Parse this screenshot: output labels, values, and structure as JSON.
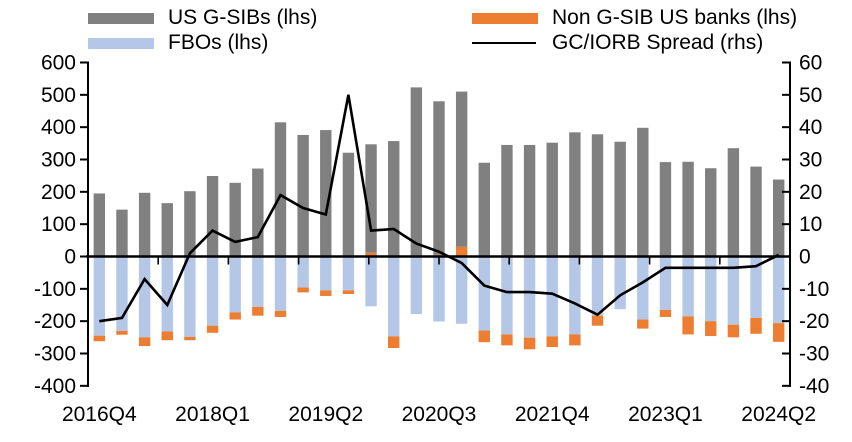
{
  "chart": {
    "legend": {
      "items": [
        {
          "label": "US G-SIBs (lhs)",
          "color": "#808080",
          "marker": "rect"
        },
        {
          "label": "FBOs (lhs)",
          "color": "#b4c7e7",
          "marker": "rect"
        },
        {
          "label": "Non G-SIB US banks (lhs)",
          "color": "#ed7d31",
          "marker": "rect"
        },
        {
          "label": "GC/IORB Spread (rhs)",
          "color": "#000000",
          "marker": "line"
        }
      ]
    },
    "left_axis_tick_labels": [
      "600",
      "500",
      "400",
      "300",
      "200",
      "100",
      "0",
      "-100",
      "-200",
      "-300",
      "-400"
    ],
    "right_axis_tick_labels": [
      "60",
      "50",
      "40",
      "30",
      "20",
      "10",
      "0",
      "-10",
      "-20",
      "-30",
      "-40"
    ],
    "x_tick_labels": [
      "2016Q4",
      "2018Q1",
      "2019Q2",
      "2020Q3",
      "2021Q4",
      "2023Q1",
      "2024Q2"
    ]
  },
  "chart_data": {
    "type": "combo_stacked_bar_line",
    "categories": [
      "2016Q4",
      "2017Q1",
      "2017Q2",
      "2017Q3",
      "2017Q4",
      "2018Q1",
      "2018Q2",
      "2018Q3",
      "2018Q4",
      "2019Q1",
      "2019Q2",
      "2019Q3",
      "2019Q4",
      "2020Q1",
      "2020Q2",
      "2020Q3",
      "2020Q4",
      "2021Q1",
      "2021Q2",
      "2021Q3",
      "2021Q4",
      "2022Q1",
      "2022Q2",
      "2022Q3",
      "2022Q4",
      "2023Q1",
      "2023Q2",
      "2023Q3",
      "2023Q4",
      "2024Q1",
      "2024Q2"
    ],
    "series": [
      {
        "name": "US G-SIBs (lhs)",
        "type": "bar",
        "axis": "lhs",
        "color": "#808080",
        "values": [
          195,
          145,
          197,
          165,
          202,
          249,
          228,
          272,
          415,
          376,
          391,
          321,
          335,
          357,
          523,
          475,
          480,
          290,
          345,
          345,
          352,
          384,
          378,
          355,
          398,
          292,
          293,
          273,
          335,
          278,
          238
        ]
      },
      {
        "name": "FBOs (lhs)",
        "type": "bar",
        "axis": "lhs",
        "color": "#b4c7e7",
        "values": [
          -245,
          -230,
          -250,
          -232,
          -249,
          -214,
          -173,
          -156,
          -168,
          -96,
          -105,
          -105,
          -154,
          -247,
          -178,
          -201,
          -208,
          -229,
          -241,
          -251,
          -247,
          -241,
          -183,
          -163,
          -195,
          -165,
          -185,
          -200,
          -211,
          -190,
          -206
        ]
      },
      {
        "name": "Non G-SIB US banks (lhs)",
        "type": "bar",
        "axis": "lhs",
        "color": "#ed7d31",
        "values": [
          -17,
          -12,
          -27,
          -27,
          -10,
          -22,
          -22,
          -27,
          -19,
          -15,
          -17,
          -11,
          12,
          -36,
          0,
          5,
          30,
          -36,
          -34,
          -36,
          -33,
          -34,
          -31,
          0,
          -28,
          -22,
          -56,
          -46,
          -39,
          -49,
          -58
        ]
      },
      {
        "name": "GC/IORB Spread (rhs)",
        "type": "line",
        "axis": "rhs",
        "color": "#000000",
        "values": [
          -20,
          -19,
          -7,
          -15,
          1,
          8,
          4.5,
          6,
          19,
          15,
          13,
          50,
          8,
          8.5,
          4,
          1.5,
          -2,
          -9,
          -11,
          -11,
          -11.5,
          -14.5,
          -18,
          -12,
          -8,
          -3.5,
          -3.5,
          -3.5,
          -3.5,
          -3,
          0.5
        ]
      }
    ],
    "left_axis": {
      "min": -400,
      "max": 600,
      "step": 100
    },
    "right_axis": {
      "min": -40,
      "max": 60,
      "step": 10
    },
    "x_tick_label_every": 5,
    "grid": false,
    "legend_position": "top",
    "title": ""
  }
}
